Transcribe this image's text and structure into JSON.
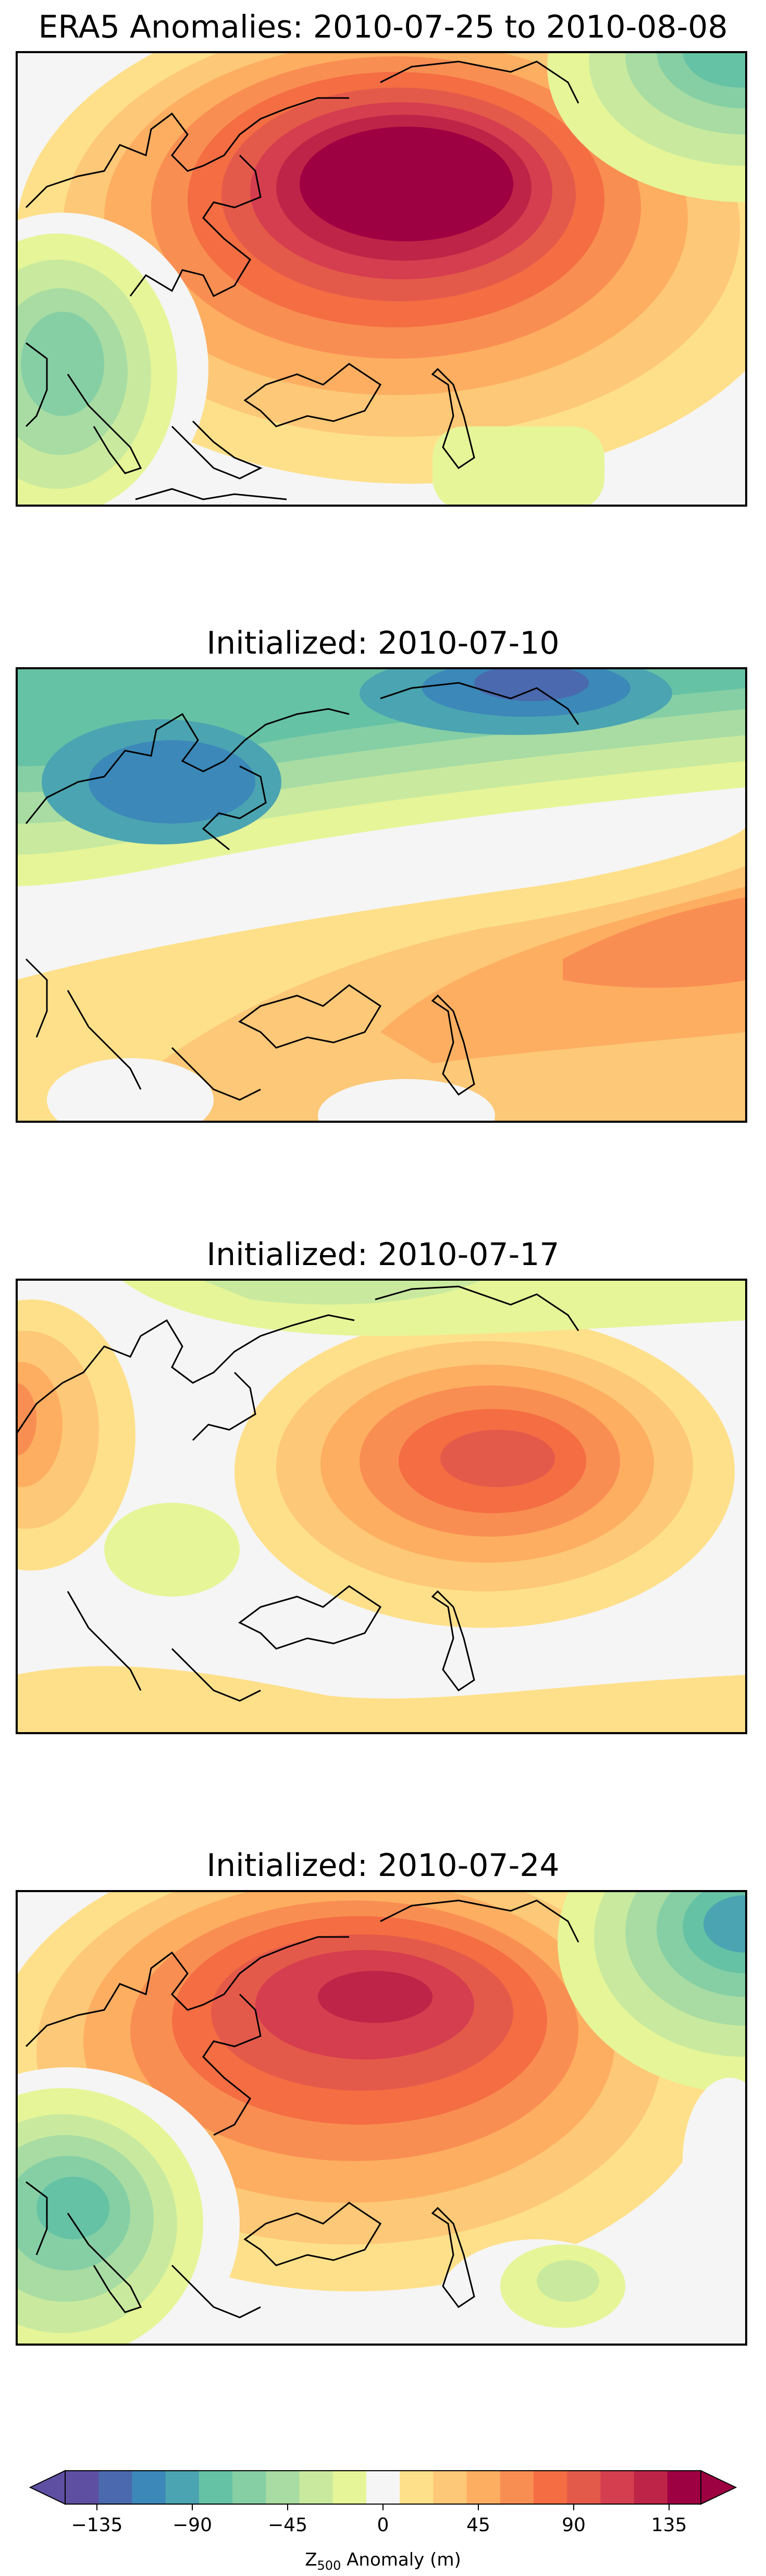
{
  "panels": [
    {
      "title": "ERA5 Anomalies: 2010-07-25 to 2010-08-08"
    },
    {
      "title": "Initialized: 2010-07-10"
    },
    {
      "title": "Initialized: 2010-07-17"
    },
    {
      "title": "Initialized: 2010-07-24"
    }
  ],
  "colorbar": {
    "label_main": "Z",
    "label_sub": "500",
    "label_rest": " Anomaly (m)",
    "ticks": [
      "−135",
      "−90",
      "−45",
      "0",
      "45",
      "90",
      "135"
    ],
    "tick_values": [
      -135,
      -90,
      -45,
      0,
      45,
      90,
      135
    ],
    "range": [
      -150,
      150
    ],
    "step": 15,
    "colormap": "Spectral_r",
    "colors": [
      "#5e4fa2",
      "#4a69ae",
      "#3b88b9",
      "#4ba4b1",
      "#66c2a5",
      "#86cfa5",
      "#a8dca3",
      "#c9ea9e",
      "#e6f598",
      "#f5f5f5",
      "#fee08b",
      "#fdc877",
      "#fdae61",
      "#f98e52",
      "#f46d43",
      "#e45a4a",
      "#d53e4f",
      "#be2447",
      "#9e0142"
    ]
  },
  "colors": {
    "coastline": "#000000",
    "frame": "#000000",
    "neutral": "#f5f5f5"
  }
}
